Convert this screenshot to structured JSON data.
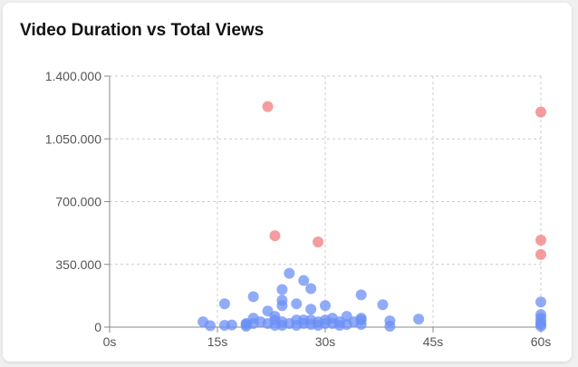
{
  "chart_data": {
    "type": "scatter",
    "title": "Video Duration vs Total Views",
    "xlabel": "",
    "ylabel": "",
    "xlim": [
      0,
      60
    ],
    "ylim": [
      0,
      1400000
    ],
    "x_ticks": [
      0,
      15,
      30,
      45,
      60
    ],
    "x_tick_labels": [
      "0s",
      "15s",
      "30s",
      "45s",
      "60s"
    ],
    "y_ticks": [
      0,
      350000,
      700000,
      1050000,
      1400000
    ],
    "y_tick_labels": [
      "0",
      "350.000",
      "700.000",
      "1.050.000",
      "1.400.000"
    ],
    "grid": true,
    "series": [
      {
        "color": "#6b8ff5",
        "points": [
          [
            13,
            30000
          ],
          [
            14,
            8000
          ],
          [
            16,
            130000
          ],
          [
            16,
            10000
          ],
          [
            17,
            12000
          ],
          [
            19,
            20000
          ],
          [
            19,
            5000
          ],
          [
            19,
            15000
          ],
          [
            20,
            170000
          ],
          [
            20,
            50000
          ],
          [
            20,
            20000
          ],
          [
            21,
            30000
          ],
          [
            22,
            90000
          ],
          [
            22,
            20000
          ],
          [
            23,
            60000
          ],
          [
            23,
            40000
          ],
          [
            23,
            10000
          ],
          [
            24,
            210000
          ],
          [
            24,
            150000
          ],
          [
            24,
            120000
          ],
          [
            24,
            30000
          ],
          [
            24,
            10000
          ],
          [
            25,
            300000
          ],
          [
            25,
            20000
          ],
          [
            26,
            130000
          ],
          [
            26,
            40000
          ],
          [
            26,
            10000
          ],
          [
            27,
            260000
          ],
          [
            27,
            40000
          ],
          [
            27,
            20000
          ],
          [
            28,
            215000
          ],
          [
            28,
            100000
          ],
          [
            28,
            40000
          ],
          [
            28,
            15000
          ],
          [
            29,
            30000
          ],
          [
            29,
            10000
          ],
          [
            30,
            120000
          ],
          [
            30,
            40000
          ],
          [
            30,
            20000
          ],
          [
            31,
            50000
          ],
          [
            31,
            20000
          ],
          [
            32,
            30000
          ],
          [
            32,
            10000
          ],
          [
            33,
            60000
          ],
          [
            33,
            15000
          ],
          [
            34,
            30000
          ],
          [
            35,
            180000
          ],
          [
            35,
            50000
          ],
          [
            35,
            40000
          ],
          [
            35,
            15000
          ],
          [
            38,
            125000
          ],
          [
            39,
            35000
          ],
          [
            39,
            5000
          ],
          [
            43,
            45000
          ],
          [
            60,
            140000
          ],
          [
            60,
            70000
          ],
          [
            60,
            50000
          ],
          [
            60,
            30000
          ],
          [
            60,
            15000
          ],
          [
            60,
            5000
          ]
        ]
      },
      {
        "color": "#f27b7e",
        "points": [
          [
            22,
            1230000
          ],
          [
            23,
            510000
          ],
          [
            29,
            475000
          ],
          [
            60,
            1200000
          ],
          [
            60,
            485000
          ],
          [
            60,
            405000
          ]
        ]
      }
    ]
  }
}
